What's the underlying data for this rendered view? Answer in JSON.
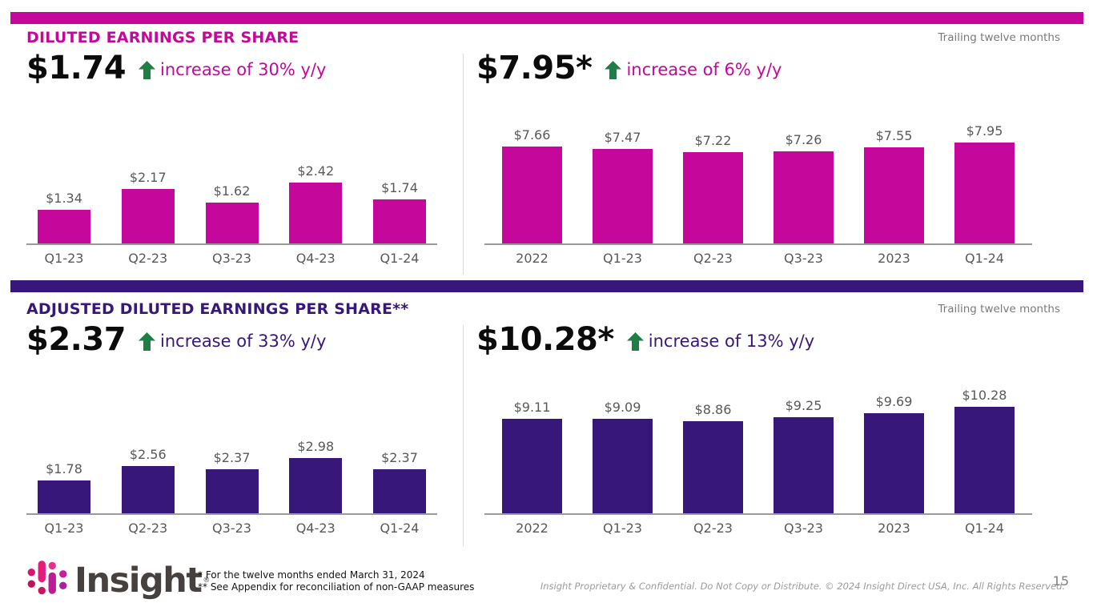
{
  "colors": {
    "magenta": "#C5079B",
    "purple": "#38177B",
    "green_arrow": "#1E7E45",
    "label_gray": "#595959"
  },
  "sections": {
    "top": {
      "title": "DILUTED EARNINGS PER SHARE",
      "tag": "Trailing twelve months",
      "left": {
        "headline": "$1.74",
        "change": "increase of 30% y/y"
      },
      "right": {
        "headline": "$7.95*",
        "change": "increase of 6% y/y"
      }
    },
    "bottom": {
      "title": "ADJUSTED DILUTED EARNINGS PER SHARE**",
      "tag": "Trailing twelve months",
      "left": {
        "headline": "$2.37",
        "change": "increase of 33% y/y"
      },
      "right": {
        "headline": "$10.28*",
        "change": "increase of 13% y/y"
      }
    }
  },
  "chart_data": [
    {
      "id": "diluted-eps-quarterly",
      "type": "bar",
      "title": "Diluted earnings per share by quarter",
      "categories": [
        "Q1-23",
        "Q2-23",
        "Q3-23",
        "Q4-23",
        "Q1-24"
      ],
      "values": [
        1.34,
        2.17,
        1.62,
        2.42,
        1.74
      ],
      "labels": [
        "$1.34",
        "$2.17",
        "$1.62",
        "$2.42",
        "$1.74"
      ],
      "bar_color": "#C5079B",
      "ylim": [
        0,
        2.42
      ],
      "grid": false,
      "legend": "none"
    },
    {
      "id": "diluted-eps-ttm",
      "type": "bar",
      "title": "Diluted earnings per share trailing twelve months",
      "categories": [
        "2022",
        "Q1-23",
        "Q2-23",
        "Q3-23",
        "2023",
        "Q1-24"
      ],
      "values": [
        7.66,
        7.47,
        7.22,
        7.26,
        7.55,
        7.95
      ],
      "labels": [
        "$7.66",
        "$7.47",
        "$7.22",
        "$7.26",
        "$7.55",
        "$7.95"
      ],
      "bar_color": "#C5079B",
      "ylim": [
        0,
        7.95
      ],
      "grid": false,
      "legend": "none"
    },
    {
      "id": "adjusted-diluted-eps-quarterly",
      "type": "bar",
      "title": "Adjusted diluted earnings per share by quarter",
      "categories": [
        "Q1-23",
        "Q2-23",
        "Q3-23",
        "Q4-23",
        "Q1-24"
      ],
      "values": [
        1.78,
        2.56,
        2.37,
        2.98,
        2.37
      ],
      "labels": [
        "$1.78",
        "$2.56",
        "$2.37",
        "$2.98",
        "$2.37"
      ],
      "bar_color": "#38177B",
      "ylim": [
        0,
        2.98
      ],
      "grid": false,
      "legend": "none"
    },
    {
      "id": "adjusted-diluted-eps-ttm",
      "type": "bar",
      "title": "Adjusted diluted earnings per share trailing twelve months",
      "categories": [
        "2022",
        "Q1-23",
        "Q2-23",
        "Q3-23",
        "2023",
        "Q1-24"
      ],
      "values": [
        9.11,
        9.09,
        8.86,
        9.25,
        9.69,
        10.28
      ],
      "labels": [
        "$9.11",
        "$9.09",
        "$8.86",
        "$9.25",
        "$9.69",
        "$10.28"
      ],
      "bar_color": "#38177B",
      "ylim": [
        0,
        10.28
      ],
      "grid": false,
      "legend": "none"
    }
  ],
  "footer": {
    "logo_text": "Insight",
    "logo_reg": "®",
    "footnote_line1": "* For the twelve months ended March 31, 2024",
    "footnote_line2": "** See Appendix for reconciliation of non-GAAP measures",
    "copyright": "Insight Proprietary & Confidential. Do Not Copy or Distribute. © 2024 Insight Direct USA, Inc. All Rights Reserved.",
    "page_number": "15"
  }
}
